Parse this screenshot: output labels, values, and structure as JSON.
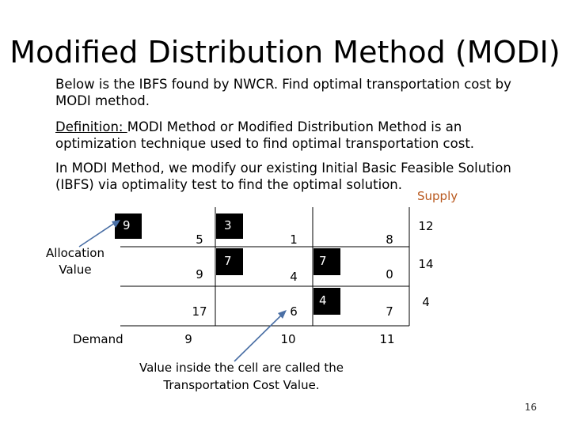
{
  "slide": {
    "title": "Modified Distribution Method (MODI)",
    "intro": "Below is the IBFS found by NWCR. Find optimal transportation cost by MODI method.",
    "definition_label": "Definition: ",
    "definition_term": "MODI Method",
    "definition_rest": " or Modified Distribution Method is an optimization technique used to find optimal transportation cost.",
    "modi_prefix": "In ",
    "modi_term": "MODI Method",
    "modi_rest": ", we modify our existing Initial Basic Feasible Solution (IBFS) via optimality test to find the optimal solution.",
    "page_number": "16"
  },
  "table": {
    "supply_header": "Supply",
    "demand_label": "Demand",
    "allocation_label_line1": "Allocation",
    "allocation_label_line2": "Value",
    "cost_note_line1": "Value inside the cell are called the",
    "cost_note_line2": "Transportation Cost Value.",
    "costs": [
      [
        "5",
        "1",
        "8"
      ],
      [
        "9",
        "4",
        "0"
      ],
      [
        "17",
        "6",
        "7"
      ]
    ],
    "allocations": [
      [
        "9",
        "3",
        ""
      ],
      [
        "",
        "7",
        "7"
      ],
      [
        "",
        "",
        "4"
      ]
    ],
    "supply": [
      "12",
      "14",
      "4"
    ],
    "demand": [
      "9",
      "10",
      "11"
    ]
  },
  "colors": {
    "supply_header": "#b8571c",
    "arrow": "#4a6fa5"
  }
}
